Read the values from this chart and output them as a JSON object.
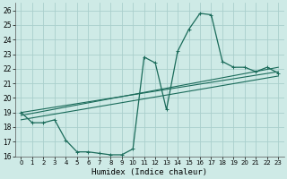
{
  "xlabel": "Humidex (Indice chaleur)",
  "bg_color": "#ceeae6",
  "grid_color": "#aacfcc",
  "line_color": "#1a6b5a",
  "xlim": [
    -0.5,
    23.5
  ],
  "ylim": [
    16,
    26.5
  ],
  "xticks": [
    0,
    1,
    2,
    3,
    4,
    5,
    6,
    7,
    8,
    9,
    10,
    11,
    12,
    13,
    14,
    15,
    16,
    17,
    18,
    19,
    20,
    21,
    22,
    23
  ],
  "yticks": [
    16,
    17,
    18,
    19,
    20,
    21,
    22,
    23,
    24,
    25,
    26
  ],
  "zigzag_x": [
    0,
    1,
    2,
    3,
    4,
    5,
    6,
    7,
    8,
    9,
    10,
    11,
    12,
    13,
    14,
    15,
    16,
    17,
    18,
    19,
    20,
    21,
    22,
    23
  ],
  "zigzag_y": [
    19.0,
    18.3,
    18.3,
    18.5,
    17.1,
    16.3,
    16.3,
    16.2,
    16.1,
    16.1,
    16.5,
    22.8,
    22.4,
    19.2,
    23.2,
    24.7,
    25.8,
    25.7,
    22.5,
    22.1,
    22.1,
    21.8,
    22.1,
    21.7
  ],
  "line1_x": [
    0,
    23
  ],
  "line1_y": [
    19.0,
    21.8
  ],
  "line2_x": [
    0,
    23
  ],
  "line2_y": [
    18.8,
    22.1
  ],
  "line3_x": [
    0,
    23
  ],
  "line3_y": [
    18.5,
    21.5
  ],
  "xtick_fontsize": 5,
  "ytick_fontsize": 5.5,
  "xlabel_fontsize": 6.5
}
